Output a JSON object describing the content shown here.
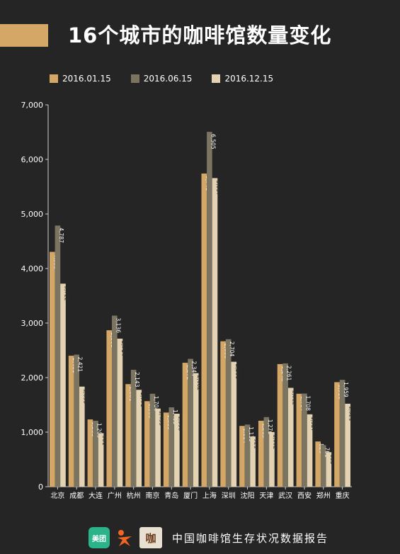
{
  "page": {
    "title": "16个城市的咖啡馆数量变化",
    "footer_text": "中国咖啡馆生存状况数据报告",
    "logos": {
      "meituan": "美团",
      "ka": "咖"
    }
  },
  "colors": {
    "background": "#252525",
    "accent": "#d4a766",
    "series": [
      "#d4a766",
      "#7a7461",
      "#e3d3b3"
    ]
  },
  "chart_data": {
    "type": "bar",
    "categories": [
      "北京",
      "成都",
      "大连",
      "广州",
      "杭州",
      "南京",
      "青岛",
      "厦门",
      "上海",
      "深圳",
      "沈阳",
      "天津",
      "武汉",
      "西安",
      "郑州",
      "重庆"
    ],
    "series": [
      {
        "name": "2016.01.15",
        "values": [
          4305,
          2401,
          1233,
          2868,
          1881,
          1568,
          1359,
          2272,
          5741,
          2666,
          1114,
          1209,
          2248,
          1704,
          829,
          1916
        ]
      },
      {
        "name": "2016.06.15",
        "values": [
          4787,
          2421,
          1209,
          3136,
          2143,
          1704,
          1455,
          2344,
          6505,
          2704,
          1139,
          1276,
          2261,
          1708,
          761,
          1959
        ]
      },
      {
        "name": "2016.12.15",
        "values": [
          3722,
          1835,
          981,
          2714,
          1776,
          1433,
          1338,
          2082,
          5657,
          2290,
          921,
          1002,
          1812,
          1327,
          633,
          1521
        ]
      }
    ],
    "data_labels": [
      [
        "4,305",
        "2,401",
        "1,233",
        "2,868",
        "1,881",
        "1,568",
        "1,359",
        "2,272",
        "5,741",
        "2,666",
        "1,114",
        "1,209",
        "2,248",
        "1,704",
        "829",
        "1,916"
      ],
      [
        "4,787",
        "2,421",
        "1,209",
        "3,136",
        "2,143",
        "1,704",
        "1,455",
        "2,344",
        "6,505",
        "2,704",
        "1,139",
        "1,276",
        "2,261",
        "1,708",
        "761",
        "1,959"
      ],
      [
        "3,722",
        "1,835",
        "981",
        "2,714",
        "1,776",
        "1,433",
        "1,338",
        "2,082",
        "5,657",
        "2,290",
        "921",
        "1,002",
        "1,812",
        "1,327",
        "633",
        "1,521"
      ]
    ],
    "y_ticks": [
      "0",
      "1,000",
      "2,000",
      "3,000",
      "4,000",
      "5,000",
      "6,000",
      "7,000"
    ],
    "ylim": [
      0,
      7000
    ],
    "grid": false,
    "legend_position": "top-left"
  }
}
